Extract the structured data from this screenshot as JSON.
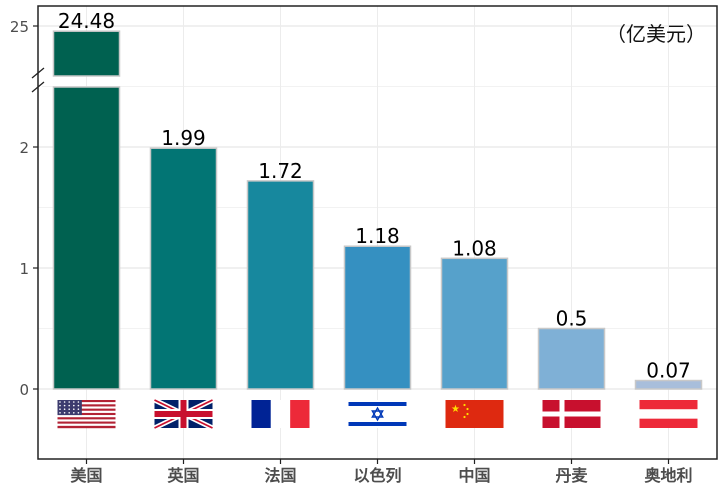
{
  "unit_label": "（亿美元）",
  "chart_data": {
    "type": "bar",
    "categories": [
      "美国",
      "英国",
      "法国",
      "以色列",
      "中国",
      "丹麦",
      "奥地利"
    ],
    "values": [
      24.48,
      1.99,
      1.72,
      1.18,
      1.08,
      0.5,
      0.07
    ],
    "value_labels": [
      "24.48",
      "1.99",
      "1.72",
      "1.18",
      "1.08",
      "0.5",
      "0.07"
    ],
    "colors": [
      "#006150",
      "#027574",
      "#17889e",
      "#3590c1",
      "#56a1cb",
      "#7fb0d6",
      "#a8bedb"
    ],
    "flags": [
      "us-flag",
      "uk-flag",
      "france-flag",
      "israel-flag",
      "china-flag",
      "denmark-flag",
      "austria-flag"
    ],
    "y_ticks": [
      "0",
      "1",
      "2",
      "25"
    ],
    "ylim": [
      0,
      25
    ],
    "axis_break": true,
    "grid": true,
    "legend": "none"
  }
}
